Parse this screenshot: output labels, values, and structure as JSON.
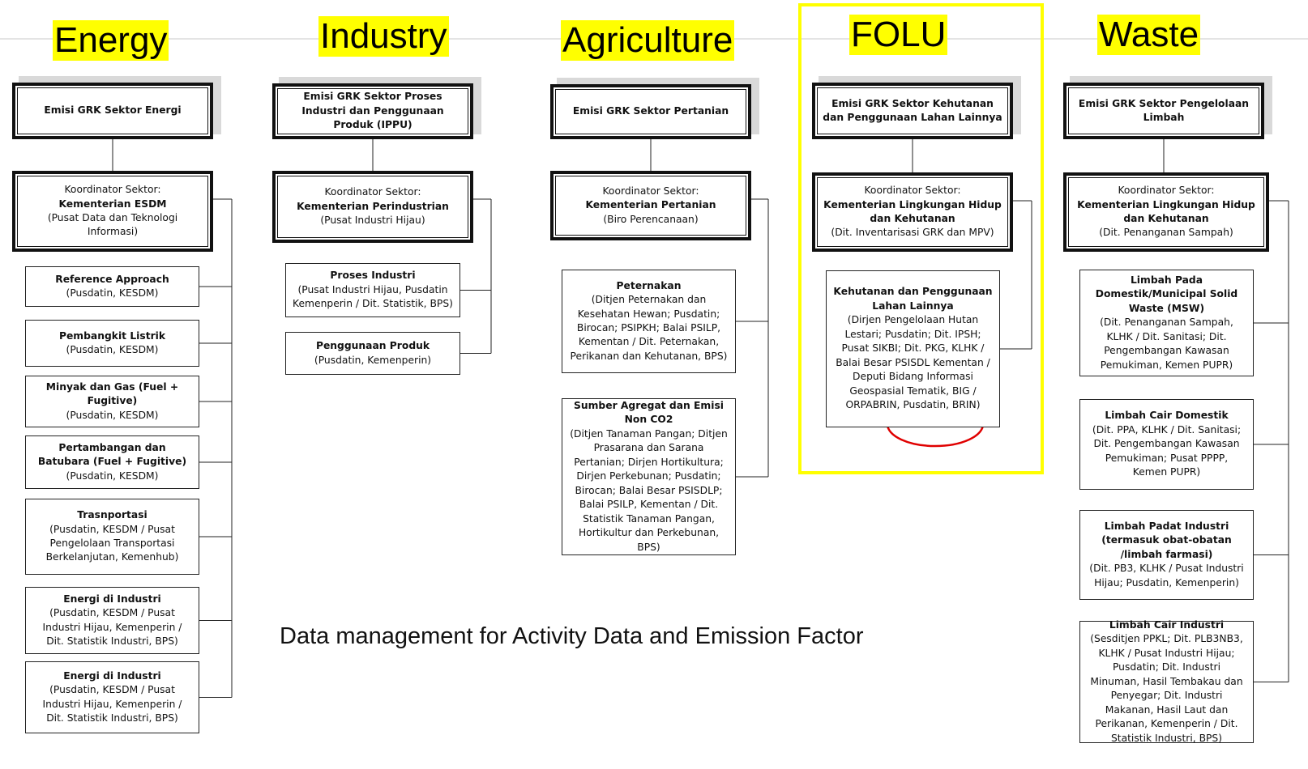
{
  "caption": "Data management for Activity Data and Emission Factor",
  "columns": [
    {
      "heading": "Energy",
      "sector_box": "Emisi GRK Sektor Energi",
      "coordinator": {
        "label": "Koordinator Sektor:",
        "name": "Kementerian ESDM",
        "detail": "(Pusat Data dan Teknologi Informasi)"
      },
      "items": [
        {
          "title": "Reference Approach",
          "detail": "(Pusdatin, KESDM)"
        },
        {
          "title": "Pembangkit Listrik",
          "detail": "(Pusdatin, KESDM)"
        },
        {
          "title": "Minyak dan Gas (Fuel + Fugitive)",
          "detail": "(Pusdatin, KESDM)"
        },
        {
          "title": "Pertambangan dan Batubara (Fuel + Fugitive)",
          "detail": "(Pusdatin, KESDM)"
        },
        {
          "title": "Trasnportasi",
          "detail": "(Pusdatin, KESDM / Pusat Pengelolaan Transportasi Berkelanjutan, Kemenhub)"
        },
        {
          "title": "Energi di Industri",
          "detail": "(Pusdatin, KESDM / Pusat Industri Hijau, Kemenperin / Dit. Statistik Industri, BPS)"
        },
        {
          "title": "Energi di Industri",
          "detail": "(Pusdatin, KESDM / Pusat Industri Hijau, Kemenperin / Dit. Statistik Industri, BPS)"
        }
      ]
    },
    {
      "heading": "Industry",
      "sector_box": "Emisi GRK Sektor Proses Industri dan Penggunaan Produk (IPPU)",
      "coordinator": {
        "label": "Koordinator Sektor:",
        "name": "Kementerian Perindustrian",
        "detail": "(Pusat Industri Hijau)"
      },
      "items": [
        {
          "title": "Proses Industri",
          "detail": "(Pusat Industri Hijau, Pusdatin Kemenperin / Dit. Statistik, BPS)"
        },
        {
          "title": "Penggunaan Produk",
          "detail": "(Pusdatin, Kemenperin)"
        }
      ]
    },
    {
      "heading": "Agriculture",
      "sector_box": "Emisi GRK Sektor Pertanian",
      "coordinator": {
        "label": "Koordinator Sektor:",
        "name": "Kementerian Pertanian",
        "detail": "(Biro Perencanaan)"
      },
      "items": [
        {
          "title": "Peternakan",
          "detail": "(Ditjen Peternakan dan Kesehatan Hewan; Pusdatin; Birocan; PSIPKH; Balai PSILP, Kementan / Dit. Peternakan, Perikanan dan Kehutanan, BPS)"
        },
        {
          "title": "Sumber Agregat dan Emisi Non CO2",
          "detail": "(Ditjen Tanaman Pangan; Ditjen Prasarana dan Sarana Pertanian; Dirjen Hortikultura; Dirjen Perkebunan; Pusdatin; Birocan; Balai Besar PSISDLP; Balai PSILP, Kementan / Dit. Statistik Tanaman Pangan, Hortikultur dan Perkebunan, BPS)"
        }
      ]
    },
    {
      "heading": "FOLU",
      "sector_box": "Emisi GRK Sektor Kehutanan dan Penggunaan Lahan Lainnya",
      "coordinator": {
        "label": "Koordinator Sektor:",
        "name": "Kementerian Lingkungan Hidup dan Kehutanan",
        "detail": "(Dit. Inventarisasi GRK dan MPV)"
      },
      "items": [
        {
          "title": "Kehutanan dan Penggunaan Lahan Lainnya",
          "detail": "(Dirjen Pengelolaan Hutan Lestari; Pusdatin; Dit. IPSH; Pusat SIKBI; Dit. PKG, KLHK / Balai Besar PSISDL Kementan / Deputi Bidang Informasi Geospasial Tematik, BIG / ORPABRIN, Pusdatin, BRIN)"
        }
      ]
    },
    {
      "heading": "Waste",
      "sector_box": "Emisi GRK Sektor Pengelolaan Limbah",
      "coordinator": {
        "label": "Koordinator Sektor:",
        "name": "Kementerian Lingkungan Hidup dan Kehutanan",
        "detail": "(Dit. Penanganan Sampah)"
      },
      "items": [
        {
          "title": "Limbah Pada Domestik/Municipal Solid Waste (MSW)",
          "detail": "(Dit. Penanganan Sampah, KLHK / Dit. Sanitasi; Dit. Pengembangan Kawasan Pemukiman, Kemen PUPR)"
        },
        {
          "title": "Limbah Cair Domestik",
          "detail": "(Dit. PPA, KLHK / Dit. Sanitasi; Dit. Pengembangan Kawasan Pemukiman; Pusat PPPP, Kemen PUPR)"
        },
        {
          "title": "Limbah Padat Industri (termasuk obat-obatan /limbah farmasi)",
          "detail": "(Dit. PB3, KLHK / Pusat Industri Hijau; Pusdatin, Kemenperin)"
        },
        {
          "title": "Limbah Cair Industri",
          "detail": "(Sesditjen PPKL; Dit. PLB3NB3, KLHK / Pusat Industri Hijau; Pusdatin; Dit. Industri Minuman, Hasil Tembakau dan Penyegar; Dit. Industri Makanan, Hasil Laut dan Perikanan, Kemenperin / Dit. Statistik Industri, BPS)"
        }
      ]
    }
  ]
}
